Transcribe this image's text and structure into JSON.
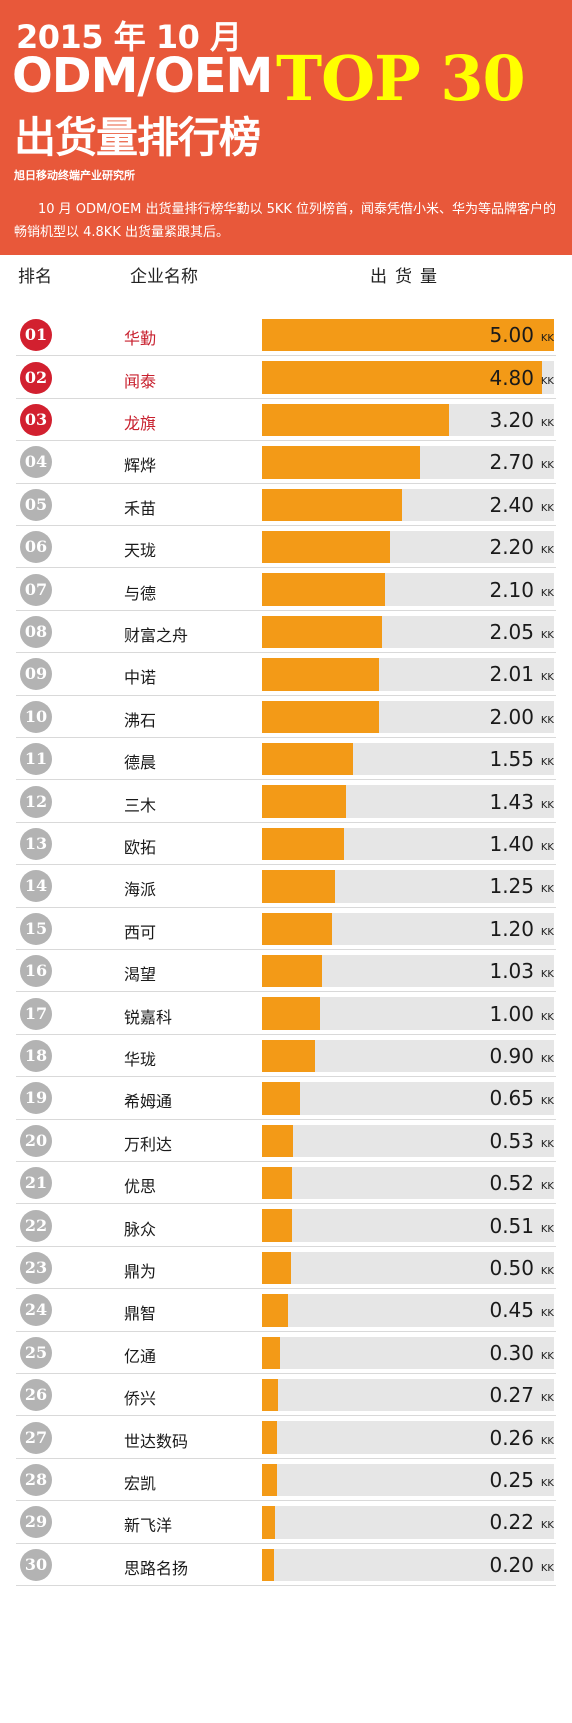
{
  "header": {
    "title_year": "2015 年 10 月",
    "title_odm": "ODM/OEM",
    "title_rank": "出货量排行榜",
    "title_top": "TOP 30",
    "source": "旭日移动终端产业研究所",
    "summary": "10 月 ODM/OEM 出货量排行榜华勤以 5KK 位列榜首，闻泰凭借小米、华为等品牌客户的畅销机型以 4.8KK 出货量紧跟其后。",
    "bg_color": "#e8583a",
    "accent_color": "#ffff00"
  },
  "columns": {
    "rank": "排名",
    "name": "企业名称",
    "shipment": "出货量"
  },
  "chart_data": {
    "type": "bar",
    "orientation": "horizontal",
    "unit": "KK",
    "xlim": [
      0,
      5.0
    ],
    "bar_color": "#f39a17",
    "track_color": "#e6e6e6",
    "top_badge_color": "#d2202f",
    "badge_color": "#b3b3b3",
    "rows": [
      {
        "rank": "01",
        "name": "华勤",
        "value": 5.0,
        "label": "5.00"
      },
      {
        "rank": "02",
        "name": "闻泰",
        "value": 4.8,
        "label": "4.80"
      },
      {
        "rank": "03",
        "name": "龙旗",
        "value": 3.2,
        "label": "3.20"
      },
      {
        "rank": "04",
        "name": "辉烨",
        "value": 2.7,
        "label": "2.70"
      },
      {
        "rank": "05",
        "name": "禾苗",
        "value": 2.4,
        "label": "2.40"
      },
      {
        "rank": "06",
        "name": "天珑",
        "value": 2.2,
        "label": "2.20"
      },
      {
        "rank": "07",
        "name": "与德",
        "value": 2.1,
        "label": "2.10"
      },
      {
        "rank": "08",
        "name": "财富之舟",
        "value": 2.05,
        "label": "2.05"
      },
      {
        "rank": "09",
        "name": "中诺",
        "value": 2.01,
        "label": "2.01"
      },
      {
        "rank": "10",
        "name": "沸石",
        "value": 2.0,
        "label": "2.00"
      },
      {
        "rank": "11",
        "name": "德晨",
        "value": 1.55,
        "label": "1.55"
      },
      {
        "rank": "12",
        "name": "三木",
        "value": 1.43,
        "label": "1.43"
      },
      {
        "rank": "13",
        "name": "欧拓",
        "value": 1.4,
        "label": "1.40"
      },
      {
        "rank": "14",
        "name": "海派",
        "value": 1.25,
        "label": "1.25"
      },
      {
        "rank": "15",
        "name": "西可",
        "value": 1.2,
        "label": "1.20"
      },
      {
        "rank": "16",
        "name": "渴望",
        "value": 1.03,
        "label": "1.03"
      },
      {
        "rank": "17",
        "name": "锐嘉科",
        "value": 1.0,
        "label": "1.00"
      },
      {
        "rank": "18",
        "name": "华珑",
        "value": 0.9,
        "label": "0.90"
      },
      {
        "rank": "19",
        "name": "希姆通",
        "value": 0.65,
        "label": "0.65"
      },
      {
        "rank": "20",
        "name": "万利达",
        "value": 0.53,
        "label": "0.53"
      },
      {
        "rank": "21",
        "name": "优思",
        "value": 0.52,
        "label": "0.52"
      },
      {
        "rank": "22",
        "name": "脉众",
        "value": 0.51,
        "label": "0.51"
      },
      {
        "rank": "23",
        "name": "鼎为",
        "value": 0.5,
        "label": "0.50"
      },
      {
        "rank": "24",
        "name": "鼎智",
        "value": 0.45,
        "label": "0.45"
      },
      {
        "rank": "25",
        "name": "亿通",
        "value": 0.3,
        "label": "0.30"
      },
      {
        "rank": "26",
        "name": "侨兴",
        "value": 0.27,
        "label": "0.27"
      },
      {
        "rank": "27",
        "name": "世达数码",
        "value": 0.26,
        "label": "0.26"
      },
      {
        "rank": "28",
        "name": "宏凯",
        "value": 0.25,
        "label": "0.25"
      },
      {
        "rank": "29",
        "name": "新飞洋",
        "value": 0.22,
        "label": "0.22"
      },
      {
        "rank": "30",
        "name": "思路名扬",
        "value": 0.2,
        "label": "0.20"
      }
    ]
  }
}
